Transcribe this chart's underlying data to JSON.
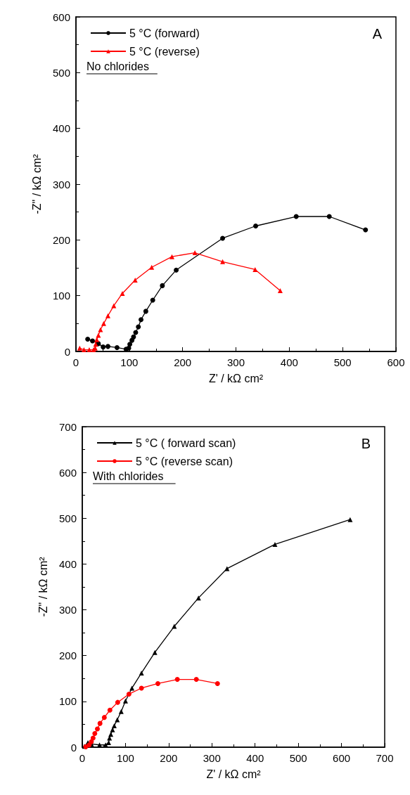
{
  "chart_data": [
    {
      "type": "line",
      "xlabel": "Z' / kΩ cm²",
      "ylabel": "-Z\" / kΩ cm²",
      "xlim": [
        0,
        600
      ],
      "ylim": [
        0,
        600
      ],
      "xticks": [
        0,
        100,
        200,
        300,
        400,
        500,
        600
      ],
      "yticks": [
        0,
        100,
        200,
        300,
        400,
        500,
        600
      ],
      "legend": "top left",
      "grid": false,
      "annotations": [
        "A",
        "No chlorides"
      ],
      "series": [
        {
          "name": "5 °C (forward)",
          "color": "#000000",
          "marker": "circle",
          "x": [
            22,
            31,
            42,
            51,
            60,
            77,
            94,
            99,
            101,
            105,
            108,
            112,
            117,
            122,
            131,
            144,
            162,
            188,
            275,
            337,
            413,
            475,
            543
          ],
          "values": [
            22,
            19,
            14,
            8,
            9,
            7,
            4,
            6,
            13,
            20,
            26,
            34,
            44,
            57,
            72,
            92,
            118,
            146,
            203,
            225,
            242,
            242,
            218
          ]
        },
        {
          "name": "5 °C (reverse)",
          "color": "#ff0000",
          "marker": "triangle",
          "x": [
            7,
            15,
            25,
            33,
            36,
            37,
            39,
            42,
            46,
            52,
            60,
            71,
            87,
            111,
            142,
            180,
            223,
            275,
            336,
            383
          ],
          "values": [
            6,
            3,
            3,
            3,
            6,
            13,
            21,
            29,
            39,
            50,
            64,
            82,
            104,
            128,
            151,
            170,
            177,
            161,
            147,
            109
          ]
        }
      ]
    },
    {
      "type": "line",
      "xlabel": "Z' / kΩ cm²",
      "ylabel": "-Z\" / kΩ cm²",
      "xlim": [
        0,
        700
      ],
      "ylim": [
        0,
        700
      ],
      "xticks": [
        0,
        100,
        200,
        300,
        400,
        500,
        600,
        700
      ],
      "yticks": [
        0,
        100,
        200,
        300,
        400,
        500,
        600,
        700
      ],
      "legend": "top left",
      "grid": false,
      "annotations": [
        "B",
        "With chlorides"
      ],
      "series": [
        {
          "name": "5 °C ( forward scan)",
          "color": "#000000",
          "marker": "triangle",
          "x": [
            5,
            13,
            21,
            40,
            54,
            61,
            63,
            66,
            70,
            74,
            81,
            90,
            100,
            115,
            137,
            168,
            213,
            269,
            335,
            446,
            620
          ],
          "values": [
            2,
            10,
            7,
            5,
            5,
            10,
            20,
            28,
            38,
            47,
            60,
            78,
            101,
            129,
            162,
            207,
            264,
            326,
            390,
            443,
            497
          ]
        },
        {
          "name": "5 °C (reverse scan)",
          "color": "#ff0000",
          "marker": "circle",
          "x": [
            8,
            16,
            21,
            25,
            29,
            35,
            41,
            51,
            64,
            82,
            108,
            137,
            175,
            220,
            264,
            313
          ],
          "values": [
            1,
            5,
            12,
            20,
            30,
            40,
            52,
            65,
            81,
            98,
            116,
            129,
            139,
            148,
            148,
            139
          ]
        }
      ]
    }
  ]
}
